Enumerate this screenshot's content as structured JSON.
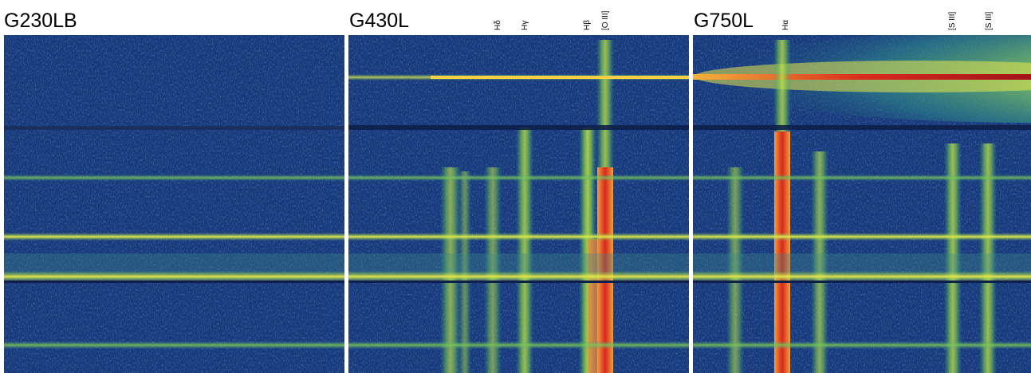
{
  "panels": [
    {
      "id": "g230lb",
      "title": "G230LB"
    },
    {
      "id": "g430l",
      "title": "G430L"
    },
    {
      "id": "g750l",
      "title": "G750L"
    }
  ],
  "line_labels": {
    "h_delta": "Hδ",
    "h_gamma": "Hγ",
    "h_beta": "Hβ",
    "o_iii": "[O III]",
    "h_alpha": "Hα",
    "s_iii_1": "[S III]",
    "s_iii_2": "[S III]"
  },
  "colors": {
    "background": "#16367a",
    "faint": "#2f6a9a",
    "green": "#5fc25a",
    "yellow": "#e6e64a",
    "orange": "#f08a3a",
    "red": "#d62a1c",
    "darkred": "#a0141a"
  }
}
